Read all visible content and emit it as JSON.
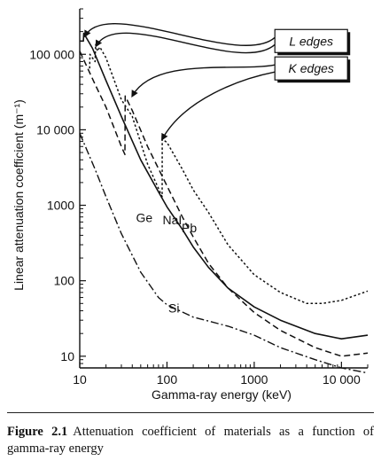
{
  "chart_data": {
    "type": "line",
    "x_scale": "log",
    "y_scale": "log",
    "xlim": [
      10,
      20000
    ],
    "ylim": [
      7,
      400000
    ],
    "xlabel": "Gamma-ray energy (keV)",
    "ylabel": "Linear attenuation coefficient (m⁻¹)",
    "x_ticks": [
      {
        "value": 10,
        "label": "10"
      },
      {
        "value": 100,
        "label": "100"
      },
      {
        "value": 1000,
        "label": "1000"
      },
      {
        "value": 10000,
        "label": "10 000"
      }
    ],
    "y_ticks": [
      {
        "value": 10,
        "label": "10"
      },
      {
        "value": 100,
        "label": "100"
      },
      {
        "value": 1000,
        "label": "1000"
      },
      {
        "value": 10000,
        "label": "10 000"
      },
      {
        "value": 100000,
        "label": "100 000"
      }
    ],
    "series": [
      {
        "name": "Ge",
        "style": "solid",
        "label_at": [
          55,
          600
        ],
        "points": [
          [
            10,
            150000
          ],
          [
            11,
            150000
          ],
          [
            11.1,
            190000
          ],
          [
            14,
            120000
          ],
          [
            20,
            45000
          ],
          [
            30,
            15000
          ],
          [
            50,
            4000
          ],
          [
            80,
            1500
          ],
          [
            100,
            950
          ],
          [
            150,
            480
          ],
          [
            200,
            280
          ],
          [
            300,
            150
          ],
          [
            500,
            80
          ],
          [
            1000,
            45
          ],
          [
            2000,
            30
          ],
          [
            5000,
            20
          ],
          [
            10000,
            17
          ],
          [
            20000,
            19
          ]
        ]
      },
      {
        "name": "NaI",
        "style": "dashed",
        "label_at": [
          115,
          560
        ],
        "points": [
          [
            10,
            110000
          ],
          [
            15,
            40000
          ],
          [
            20,
            20000
          ],
          [
            30,
            6000
          ],
          [
            33,
            4700
          ],
          [
            33.2,
            28000
          ],
          [
            40,
            18000
          ],
          [
            60,
            6000
          ],
          [
            100,
            1800
          ],
          [
            150,
            700
          ],
          [
            200,
            380
          ],
          [
            300,
            170
          ],
          [
            500,
            80
          ],
          [
            1000,
            38
          ],
          [
            2000,
            22
          ],
          [
            5000,
            13
          ],
          [
            10000,
            10
          ],
          [
            20000,
            11
          ]
        ]
      },
      {
        "name": "Pb",
        "style": "dotted",
        "label_at": [
          180,
          440
        ],
        "points": [
          [
            13,
            65000
          ],
          [
            13.1,
            100000
          ],
          [
            15,
            80000
          ],
          [
            15.2,
            135000
          ],
          [
            16,
            110000
          ],
          [
            17,
            125000
          ],
          [
            20,
            90000
          ],
          [
            30,
            25000
          ],
          [
            40,
            15000
          ],
          [
            60,
            3500
          ],
          [
            88,
            1300
          ],
          [
            88.2,
            7500
          ],
          [
            100,
            6800
          ],
          [
            150,
            3000
          ],
          [
            200,
            1600
          ],
          [
            300,
            800
          ],
          [
            500,
            300
          ],
          [
            1000,
            120
          ],
          [
            2000,
            70
          ],
          [
            4000,
            50
          ],
          [
            6000,
            50
          ],
          [
            10000,
            55
          ],
          [
            20000,
            73
          ]
        ]
      },
      {
        "name": "Si",
        "style": "dashdot",
        "label_at": [
          120,
          38
        ],
        "points": [
          [
            10,
            9000
          ],
          [
            15,
            3000
          ],
          [
            20,
            1300
          ],
          [
            30,
            420
          ],
          [
            50,
            130
          ],
          [
            80,
            60
          ],
          [
            100,
            48
          ],
          [
            200,
            33
          ],
          [
            500,
            25
          ],
          [
            1000,
            19
          ],
          [
            2000,
            13
          ],
          [
            5000,
            9
          ],
          [
            10000,
            7
          ],
          [
            20000,
            6
          ]
        ]
      }
    ],
    "annotations": [
      {
        "label": "L edges",
        "box_at": [
          4500,
          150000
        ],
        "arrow_targets": [
          [
            11.5,
            175000
          ],
          [
            15.5,
            130000
          ]
        ]
      },
      {
        "label": "K edges",
        "box_at": [
          4500,
          65000
        ],
        "arrow_targets": [
          [
            40,
            28000
          ],
          [
            88,
            7500
          ]
        ]
      }
    ]
  },
  "caption": {
    "label": "Figure 2.1",
    "text": "Attenuation coefficient of materials as a function of gamma-ray energy"
  }
}
